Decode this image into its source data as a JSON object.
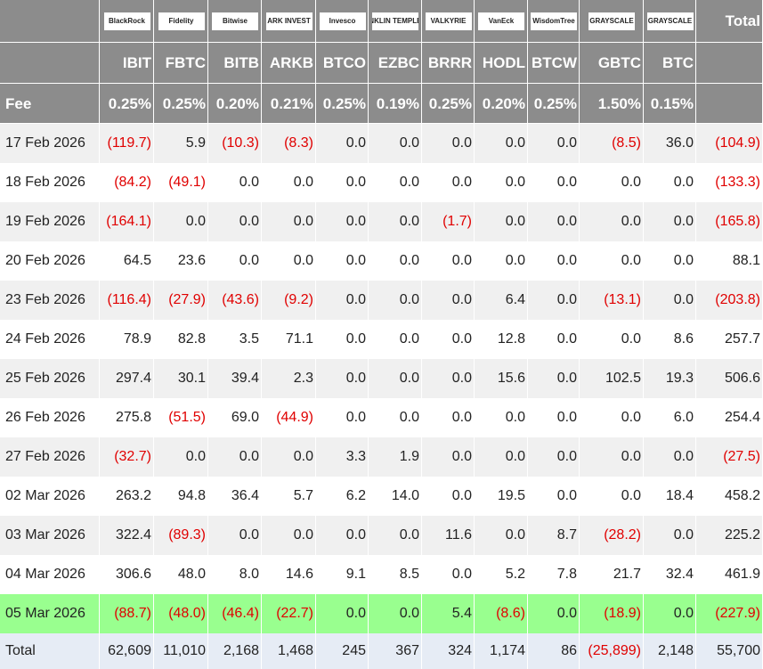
{
  "header": {
    "logos": [
      "BlackRock",
      "Fidelity",
      "Bitwise",
      "ARK INVEST",
      "Invesco",
      "FRANKLIN TEMPLETON",
      "VALKYRIE",
      "VanEck",
      "WisdomTree",
      "GRAYSCALE",
      "GRAYSCALE"
    ],
    "total_label": "Total",
    "tickers": [
      "IBIT",
      "FBTC",
      "BITB",
      "ARKB",
      "BTCO",
      "EZBC",
      "BRRR",
      "HODL",
      "BTCW",
      "GBTC",
      "BTC"
    ],
    "fee_label": "Fee",
    "fees": [
      "0.25%",
      "0.25%",
      "0.20%",
      "0.21%",
      "0.25%",
      "0.19%",
      "0.25%",
      "0.20%",
      "0.25%",
      "1.50%",
      "0.15%"
    ]
  },
  "rows": [
    {
      "date": "17 Feb 2026",
      "values": [
        "(119.7)",
        "5.9",
        "(10.3)",
        "(8.3)",
        "0.0",
        "0.0",
        "0.0",
        "0.0",
        "0.0",
        "(8.5)",
        "36.0",
        "(104.9)"
      ]
    },
    {
      "date": "18 Feb 2026",
      "values": [
        "(84.2)",
        "(49.1)",
        "0.0",
        "0.0",
        "0.0",
        "0.0",
        "0.0",
        "0.0",
        "0.0",
        "0.0",
        "0.0",
        "(133.3)"
      ]
    },
    {
      "date": "19 Feb 2026",
      "values": [
        "(164.1)",
        "0.0",
        "0.0",
        "0.0",
        "0.0",
        "0.0",
        "(1.7)",
        "0.0",
        "0.0",
        "0.0",
        "0.0",
        "(165.8)"
      ]
    },
    {
      "date": "20 Feb 2026",
      "values": [
        "64.5",
        "23.6",
        "0.0",
        "0.0",
        "0.0",
        "0.0",
        "0.0",
        "0.0",
        "0.0",
        "0.0",
        "0.0",
        "88.1"
      ]
    },
    {
      "date": "23 Feb 2026",
      "values": [
        "(116.4)",
        "(27.9)",
        "(43.6)",
        "(9.2)",
        "0.0",
        "0.0",
        "0.0",
        "6.4",
        "0.0",
        "(13.1)",
        "0.0",
        "(203.8)"
      ]
    },
    {
      "date": "24 Feb 2026",
      "values": [
        "78.9",
        "82.8",
        "3.5",
        "71.1",
        "0.0",
        "0.0",
        "0.0",
        "12.8",
        "0.0",
        "0.0",
        "8.6",
        "257.7"
      ]
    },
    {
      "date": "25 Feb 2026",
      "values": [
        "297.4",
        "30.1",
        "39.4",
        "2.3",
        "0.0",
        "0.0",
        "0.0",
        "15.6",
        "0.0",
        "102.5",
        "19.3",
        "506.6"
      ]
    },
    {
      "date": "26 Feb 2026",
      "values": [
        "275.8",
        "(51.5)",
        "69.0",
        "(44.9)",
        "0.0",
        "0.0",
        "0.0",
        "0.0",
        "0.0",
        "0.0",
        "6.0",
        "254.4"
      ]
    },
    {
      "date": "27 Feb 2026",
      "values": [
        "(32.7)",
        "0.0",
        "0.0",
        "0.0",
        "3.3",
        "1.9",
        "0.0",
        "0.0",
        "0.0",
        "0.0",
        "0.0",
        "(27.5)"
      ]
    },
    {
      "date": "02 Mar 2026",
      "values": [
        "263.2",
        "94.8",
        "36.4",
        "5.7",
        "6.2",
        "14.0",
        "0.0",
        "19.5",
        "0.0",
        "0.0",
        "18.4",
        "458.2"
      ]
    },
    {
      "date": "03 Mar 2026",
      "values": [
        "322.4",
        "(89.3)",
        "0.0",
        "0.0",
        "0.0",
        "0.0",
        "11.6",
        "0.0",
        "8.7",
        "(28.2)",
        "0.0",
        "225.2"
      ]
    },
    {
      "date": "04 Mar 2026",
      "values": [
        "306.6",
        "48.0",
        "8.0",
        "14.6",
        "9.1",
        "8.5",
        "0.0",
        "5.2",
        "7.8",
        "21.7",
        "32.4",
        "461.9"
      ]
    },
    {
      "date": "05 Mar 2026",
      "values": [
        "(88.7)",
        "(48.0)",
        "(46.4)",
        "(22.7)",
        "0.0",
        "0.0",
        "5.4",
        "(8.6)",
        "0.0",
        "(18.9)",
        "0.0",
        "(227.9)"
      ],
      "highlight": true
    }
  ],
  "total": {
    "label": "Total",
    "values": [
      "62,609",
      "11,010",
      "2,168",
      "1,468",
      "245",
      "367",
      "324",
      "1,174",
      "86",
      "(25,899)",
      "2,148",
      "55,700"
    ]
  }
}
